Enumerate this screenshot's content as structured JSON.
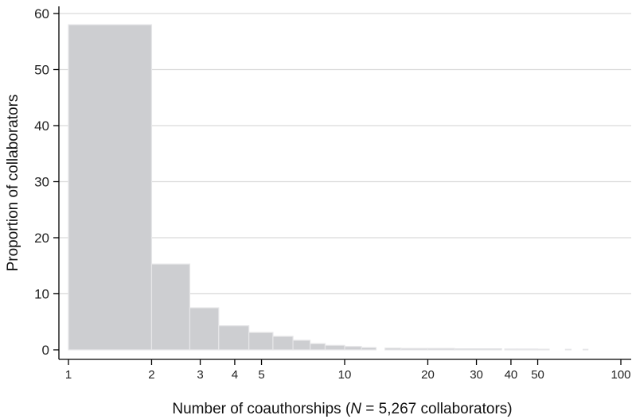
{
  "chart_data": {
    "type": "bar",
    "title": "",
    "xlabel_parts": [
      "Number of coauthorships (",
      "N",
      " = 5,267 collaborators)"
    ],
    "ylabel": "Proportion of collaborators",
    "x_scale": "log",
    "xlim": [
      1,
      100
    ],
    "ylim": [
      0,
      60
    ],
    "x_ticks": [
      1,
      2,
      3,
      4,
      5,
      10,
      20,
      30,
      40,
      50,
      100
    ],
    "y_ticks": [
      0,
      10,
      20,
      30,
      40,
      50,
      60
    ],
    "grid": "horizontal",
    "legend": "none",
    "bar_color": "#cdced1",
    "bar_edge_color": "#e6e6e8",
    "bins": [
      {
        "x0": 1,
        "x1": 2,
        "value": 58.0
      },
      {
        "x0": 2,
        "x1": 2.75,
        "value": 15.3
      },
      {
        "x0": 2.75,
        "x1": 3.5,
        "value": 7.5
      },
      {
        "x0": 3.5,
        "x1": 4.5,
        "value": 4.3
      },
      {
        "x0": 4.5,
        "x1": 5.5,
        "value": 3.1
      },
      {
        "x0": 5.5,
        "x1": 6.5,
        "value": 2.4
      },
      {
        "x0": 6.5,
        "x1": 7.5,
        "value": 1.7
      },
      {
        "x0": 7.5,
        "x1": 8.5,
        "value": 1.1
      },
      {
        "x0": 8.5,
        "x1": 10,
        "value": 0.8
      },
      {
        "x0": 10,
        "x1": 11.5,
        "value": 0.6
      },
      {
        "x0": 11.5,
        "x1": 13,
        "value": 0.4
      },
      {
        "x0": 14,
        "x1": 16,
        "value": 0.3
      },
      {
        "x0": 16,
        "x1": 20,
        "value": 0.25
      },
      {
        "x0": 20,
        "x1": 25,
        "value": 0.25
      },
      {
        "x0": 25,
        "x1": 37,
        "value": 0.2
      },
      {
        "x0": 38,
        "x1": 42,
        "value": 0.15
      },
      {
        "x0": 42,
        "x1": 50,
        "value": 0.15
      },
      {
        "x0": 50,
        "x1": 55,
        "value": 0.12
      },
      {
        "x0": 63,
        "x1": 66,
        "value": 0.1
      },
      {
        "x0": 73,
        "x1": 76,
        "value": 0.1
      }
    ]
  }
}
